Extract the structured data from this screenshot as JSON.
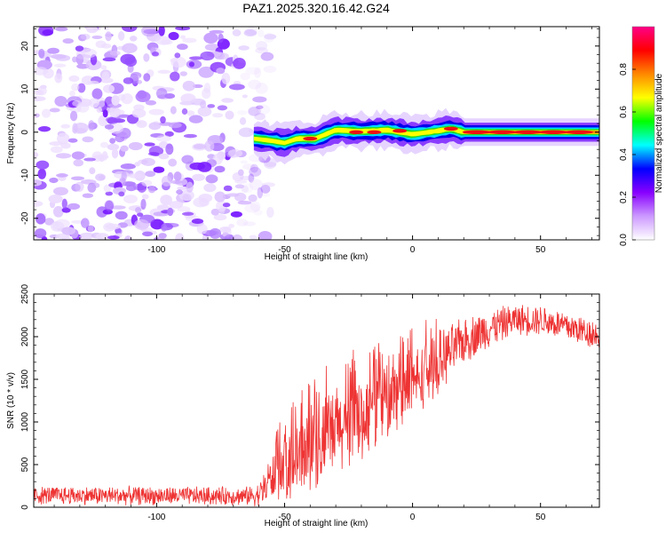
{
  "figure_title": "PAZ1.2025.320.16.42.G24",
  "chart_data": [
    {
      "type": "heatmap",
      "title": "PAZ1.2025.320.16.42.G24",
      "xlabel": "Height of straight line (km)",
      "ylabel": "Frequency (Hz)",
      "xlim": [
        -148,
        73
      ],
      "ylim": [
        -25,
        24.5
      ],
      "xticks": [
        -100,
        -50,
        0,
        50
      ],
      "yticks": [
        -20,
        -10,
        0,
        10,
        20
      ],
      "noise_region_x": [
        -148,
        -58
      ],
      "signal_centerline_hz": [
        {
          "x": -62,
          "y": -1.5
        },
        {
          "x": -55,
          "y": -2
        },
        {
          "x": -50,
          "y": -2.5
        },
        {
          "x": -45,
          "y": -1.5
        },
        {
          "x": -38,
          "y": -1.5
        },
        {
          "x": -30,
          "y": 0.5
        },
        {
          "x": -20,
          "y": 0.2
        },
        {
          "x": -10,
          "y": 0.5
        },
        {
          "x": 0,
          "y": -0.5
        },
        {
          "x": 10,
          "y": 0.3
        },
        {
          "x": 15,
          "y": 0.8
        },
        {
          "x": 20,
          "y": 0
        },
        {
          "x": 73,
          "y": 0
        }
      ],
      "hot_spots": [
        {
          "x": -40,
          "y": -1.5
        },
        {
          "x": -22,
          "y": 0
        },
        {
          "x": -15,
          "y": 0
        },
        {
          "x": -5,
          "y": 0.3
        },
        {
          "x": 15,
          "y": 0.8
        },
        {
          "x": 25,
          "y": 0
        },
        {
          "x": 35,
          "y": 0
        },
        {
          "x": 45,
          "y": 0
        },
        {
          "x": 55,
          "y": 0
        },
        {
          "x": 65,
          "y": 0
        }
      ],
      "colorbar": {
        "label": "Normalized spectral amplitude",
        "range": [
          0,
          1
        ],
        "ticks": [
          "0.0",
          "0.2",
          "0.4",
          "0.6",
          "0.8"
        ],
        "tick_values": [
          0,
          0.2,
          0.4,
          0.6,
          0.8
        ],
        "colors": [
          "#ffffff",
          "#cc99ff",
          "#8800ff",
          "#0000ff",
          "#00ffff",
          "#00ff00",
          "#ffff00",
          "#ff8800",
          "#ff0000",
          "#ff0088"
        ]
      }
    },
    {
      "type": "line",
      "xlabel": "Height of straight line (km)",
      "ylabel": "SNR (10 * v/v)",
      "xlim": [
        -148,
        73
      ],
      "ylim": [
        0,
        2500
      ],
      "xticks": [
        -100,
        -50,
        0,
        50
      ],
      "yticks": [
        0,
        500,
        1000,
        1500,
        2000,
        2500
      ],
      "series": [
        {
          "name": "SNR",
          "color": "#ee3333",
          "envelope": [
            {
              "x": -148,
              "mean": 140,
              "amp": 120
            },
            {
              "x": -65,
              "mean": 130,
              "amp": 120
            },
            {
              "x": -60,
              "mean": 150,
              "amp": 150
            },
            {
              "x": -55,
              "mean": 350,
              "amp": 300
            },
            {
              "x": -50,
              "mean": 500,
              "amp": 450
            },
            {
              "x": -40,
              "mean": 650,
              "amp": 550
            },
            {
              "x": -30,
              "mean": 900,
              "amp": 600
            },
            {
              "x": -20,
              "mean": 1050,
              "amp": 550
            },
            {
              "x": -10,
              "mean": 1250,
              "amp": 500
            },
            {
              "x": 0,
              "mean": 1450,
              "amp": 450
            },
            {
              "x": 10,
              "mean": 1700,
              "amp": 400
            },
            {
              "x": 20,
              "mean": 1950,
              "amp": 300
            },
            {
              "x": 30,
              "mean": 2100,
              "amp": 250
            },
            {
              "x": 40,
              "mean": 2200,
              "amp": 200
            },
            {
              "x": 50,
              "mean": 2200,
              "amp": 200
            },
            {
              "x": 60,
              "mean": 2120,
              "amp": 200
            },
            {
              "x": 73,
              "mean": 2020,
              "amp": 200
            }
          ]
        }
      ]
    }
  ]
}
